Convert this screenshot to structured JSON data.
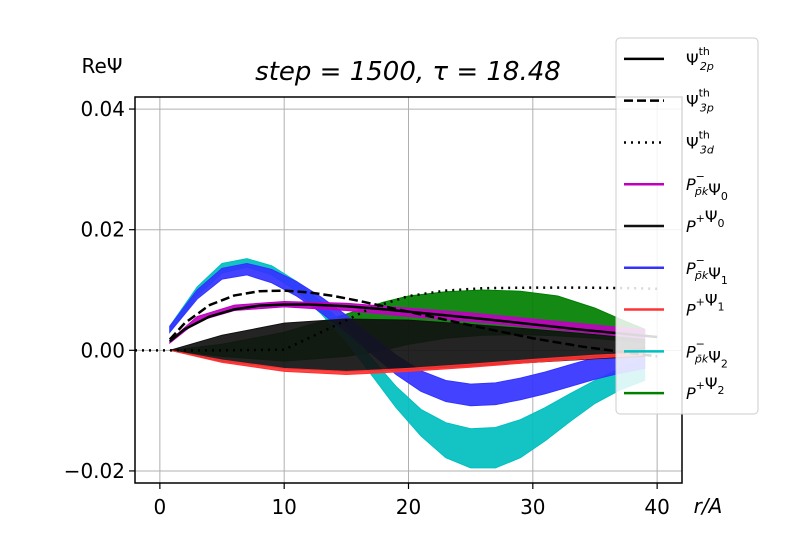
{
  "chart_data": {
    "type": "line",
    "title": "step = 1500, τ = 18.48",
    "ylabel": "ReΨ",
    "xlabel": "r/A",
    "xlim": [
      -2,
      42
    ],
    "ylim": [
      -0.022,
      0.042
    ],
    "xticks": [
      0,
      10,
      20,
      30,
      40
    ],
    "xtick_labels": [
      "0",
      "10",
      "20",
      "30",
      "40"
    ],
    "yticks": [
      -0.02,
      0.0,
      0.02,
      0.04
    ],
    "ytick_labels": [
      "−0.02",
      "0.00",
      "0.02",
      "0.04"
    ],
    "grid": true,
    "legend_position": "right",
    "series": [
      {
        "name": "Ψ_2p^th",
        "label": "Ψ",
        "sup": "th",
        "sub": "2p",
        "color": "#000000",
        "style": "solid",
        "kind": "line",
        "x": [
          0.8,
          2,
          4,
          6,
          8,
          10,
          12,
          15,
          18,
          22,
          26,
          30,
          34,
          38,
          40
        ],
        "y": [
          0.0015,
          0.0035,
          0.0056,
          0.0068,
          0.0074,
          0.0076,
          0.0076,
          0.0073,
          0.0068,
          0.006,
          0.0052,
          0.0043,
          0.0034,
          0.0026,
          0.0022
        ]
      },
      {
        "name": "Ψ_3p^th",
        "label": "Ψ",
        "sup": "th",
        "sub": "3p",
        "color": "#000000",
        "style": "dashed",
        "kind": "line",
        "x": [
          0.8,
          2,
          4,
          6,
          8,
          10,
          12,
          14,
          16,
          18,
          22,
          26,
          30,
          34,
          38,
          40
        ],
        "y": [
          0.0018,
          0.0045,
          0.0075,
          0.0091,
          0.0098,
          0.0099,
          0.0096,
          0.009,
          0.0082,
          0.0073,
          0.0055,
          0.0037,
          0.002,
          0.0006,
          -0.0005,
          -0.001
        ]
      },
      {
        "name": "Ψ_3d^th",
        "label": "Ψ",
        "sup": "th",
        "sub": "3d",
        "color": "#000000",
        "style": "dotted",
        "kind": "line",
        "x": [
          -2,
          0,
          5,
          10,
          14,
          17,
          20,
          23,
          26,
          30,
          34,
          38,
          40
        ],
        "y": [
          0.0,
          0.0,
          0.0,
          0.0001,
          0.004,
          0.007,
          0.009,
          0.0099,
          0.0103,
          0.0104,
          0.0104,
          0.0103,
          0.0102
        ]
      },
      {
        "name": "P^-Ψ_0",
        "label": "P",
        "sup": "−",
        "sub": "p̄k",
        "tail": "Ψ",
        "tail_sub": "0",
        "color": "#bf00bf",
        "kind": "band",
        "x": [
          0.8,
          3,
          6,
          10,
          15,
          20,
          25,
          30,
          35,
          39
        ],
        "y_low": [
          0.0012,
          0.0048,
          0.0066,
          0.0072,
          0.0066,
          0.0056,
          0.0048,
          0.0038,
          0.0028,
          0.002
        ],
        "y_high": [
          0.0016,
          0.0056,
          0.0075,
          0.0081,
          0.0078,
          0.007,
          0.0062,
          0.0052,
          0.0042,
          0.0034
        ]
      },
      {
        "name": "P^+Ψ_0",
        "label": "P",
        "sup": "+",
        "sub": "",
        "tail": "Ψ",
        "tail_sub": "0",
        "color": "#111111",
        "kind": "band",
        "x": [
          0.8,
          5,
          10,
          15,
          20,
          25,
          30,
          35,
          39
        ],
        "y_low": [
          0.0,
          -0.0018,
          -0.003,
          -0.0035,
          -0.0032,
          -0.0026,
          -0.002,
          -0.0014,
          -0.001
        ],
        "y_high": [
          0.0,
          0.0025,
          0.0045,
          0.0052,
          0.005,
          0.0043,
          0.0035,
          0.0026,
          0.0018
        ]
      },
      {
        "name": "P^-Ψ_1",
        "label": "P",
        "sup": "−",
        "sub": "p̄k",
        "tail": "Ψ",
        "tail_sub": "1",
        "color": "#3333ff",
        "kind": "band",
        "x": [
          0.8,
          3,
          5,
          7,
          9,
          11,
          13,
          15,
          17,
          19,
          21,
          23,
          25,
          27,
          29,
          31,
          33,
          35,
          37,
          39
        ],
        "y_low": [
          0.003,
          0.0085,
          0.0118,
          0.0125,
          0.0112,
          0.009,
          0.0062,
          0.003,
          -0.0005,
          -0.004,
          -0.0068,
          -0.0085,
          -0.0092,
          -0.009,
          -0.0082,
          -0.0072,
          -0.006,
          -0.0048,
          -0.0038,
          -0.003
        ],
        "y_high": [
          0.004,
          0.01,
          0.0136,
          0.0144,
          0.0134,
          0.0114,
          0.0088,
          0.0058,
          0.0025,
          -0.0008,
          -0.0034,
          -0.005,
          -0.0056,
          -0.0054,
          -0.0046,
          -0.0036,
          -0.0024,
          -0.0012,
          -0.0002,
          0.0006
        ]
      },
      {
        "name": "P^+Ψ_1",
        "label": "P",
        "sup": "+",
        "sub": "",
        "tail": "Ψ",
        "tail_sub": "1",
        "color": "#ff3333",
        "kind": "band",
        "x": [
          0.8,
          5,
          10,
          15,
          20,
          25,
          30,
          35,
          39
        ],
        "y_low": [
          0.0,
          -0.002,
          -0.0035,
          -0.004,
          -0.0035,
          -0.0028,
          -0.002,
          -0.0013,
          -0.0008
        ],
        "y_high": [
          0.0,
          -0.0016,
          -0.003,
          -0.0035,
          -0.003,
          -0.0023,
          -0.0015,
          -0.0008,
          -0.0004
        ]
      },
      {
        "name": "P^-Ψ_2",
        "label": "P",
        "sup": "−",
        "sub": "p̄k",
        "tail": "Ψ",
        "tail_sub": "2",
        "color": "#00bfbf",
        "kind": "band",
        "x": [
          0.8,
          3,
          5,
          7,
          9,
          11,
          13,
          15,
          17,
          19,
          21,
          23,
          25,
          27,
          29,
          31,
          33,
          35,
          37,
          39
        ],
        "y_low": [
          0.003,
          0.009,
          0.0128,
          0.0138,
          0.0125,
          0.0098,
          0.006,
          0.0015,
          -0.004,
          -0.0095,
          -0.0142,
          -0.0178,
          -0.0195,
          -0.0195,
          -0.0178,
          -0.015,
          -0.0118,
          -0.0088,
          -0.0066,
          -0.005
        ],
        "y_high": [
          0.004,
          0.0105,
          0.0144,
          0.0152,
          0.014,
          0.0114,
          0.008,
          0.0038,
          -0.0012,
          -0.006,
          -0.0098,
          -0.012,
          -0.013,
          -0.0128,
          -0.0115,
          -0.0095,
          -0.0072,
          -0.005,
          -0.003,
          -0.0015
        ]
      },
      {
        "name": "P^+Ψ_2",
        "label": "P",
        "sup": "+",
        "sub": "",
        "tail": "Ψ",
        "tail_sub": "2",
        "color": "#007f00",
        "kind": "band",
        "x": [
          0.8,
          5,
          10,
          15,
          18,
          20,
          23,
          26,
          29,
          32,
          35,
          37,
          39
        ],
        "y_low": [
          0.0,
          -0.001,
          -0.0018,
          -0.001,
          0.0,
          0.001,
          0.002,
          0.0025,
          0.0026,
          0.0024,
          0.002,
          0.0016,
          0.0012
        ],
        "y_high": [
          0.0,
          0.001,
          0.003,
          0.006,
          0.008,
          0.009,
          0.0097,
          0.01,
          0.0098,
          0.009,
          0.007,
          0.0052,
          0.0035
        ]
      }
    ]
  }
}
